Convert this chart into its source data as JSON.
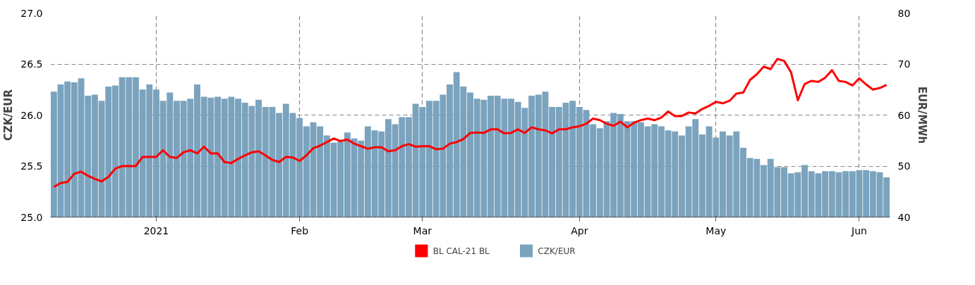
{
  "chart_data": {
    "type": "bar",
    "categories": [
      null,
      null,
      null,
      null,
      null,
      null,
      null,
      null,
      null,
      null,
      null,
      null,
      null,
      null,
      null,
      "2021",
      null,
      null,
      null,
      null,
      null,
      null,
      null,
      null,
      null,
      null,
      null,
      null,
      null,
      null,
      null,
      null,
      null,
      null,
      null,
      null,
      "Feb",
      null,
      null,
      null,
      null,
      null,
      null,
      null,
      null,
      null,
      null,
      null,
      null,
      null,
      null,
      null,
      null,
      null,
      "Mar",
      null,
      null,
      null,
      null,
      null,
      null,
      null,
      null,
      null,
      null,
      null,
      null,
      null,
      null,
      null,
      null,
      null,
      null,
      null,
      null,
      null,
      null,
      "Apr",
      null,
      null,
      null,
      null,
      null,
      null,
      null,
      null,
      null,
      null,
      null,
      null,
      null,
      null,
      null,
      null,
      null,
      null,
      null,
      "May",
      null,
      null,
      null,
      null,
      null,
      null,
      null,
      null,
      null,
      null,
      null,
      null,
      null,
      null,
      null,
      null,
      null,
      null,
      null,
      null,
      "Jun",
      null,
      null,
      null,
      null
    ],
    "series": [
      {
        "name": "BL CAL-21 BL",
        "type": "line",
        "axis": "y2",
        "color": "#ff0000",
        "values": [
          45.9,
          46.7,
          46.9,
          48.5,
          48.9,
          48.1,
          47.5,
          47.0,
          47.9,
          49.5,
          50.0,
          50.0,
          50.0,
          51.8,
          51.8,
          51.8,
          53.1,
          51.8,
          51.6,
          52.7,
          53.1,
          52.5,
          53.8,
          52.5,
          52.5,
          50.8,
          50.6,
          51.4,
          52.1,
          52.7,
          52.9,
          52.1,
          51.2,
          50.8,
          51.8,
          51.7,
          51.0,
          52.1,
          53.5,
          54.0,
          54.7,
          55.4,
          54.9,
          55.2,
          54.4,
          53.9,
          53.4,
          53.7,
          53.7,
          52.9,
          53.1,
          53.9,
          54.3,
          53.8,
          53.9,
          53.9,
          53.3,
          53.4,
          54.4,
          54.7,
          55.3,
          56.5,
          56.6,
          56.5,
          57.2,
          57.2,
          56.4,
          56.5,
          57.2,
          56.5,
          57.6,
          57.2,
          57.0,
          56.4,
          57.2,
          57.2,
          57.6,
          57.8,
          58.3,
          59.3,
          59.0,
          58.3,
          57.9,
          58.7,
          57.6,
          58.5,
          59.0,
          59.3,
          59.0,
          59.5,
          60.7,
          59.8,
          59.8,
          60.5,
          60.3,
          61.2,
          61.8,
          62.6,
          62.3,
          62.8,
          64.2,
          64.4,
          66.9,
          68.0,
          69.5,
          69.0,
          71.0,
          70.6,
          68.4,
          62.9,
          66.1,
          66.7,
          66.5,
          67.3,
          68.8,
          66.7,
          66.5,
          65.8,
          67.2,
          66.0,
          65.0,
          65.3,
          65.9
        ]
      },
      {
        "name": "CZK/EUR",
        "color": "#7ba3be",
        "values": [
          26.23,
          26.3,
          26.33,
          26.32,
          26.36,
          26.19,
          26.2,
          26.14,
          26.28,
          26.29,
          26.37,
          26.37,
          26.37,
          26.25,
          26.3,
          26.25,
          26.14,
          26.22,
          26.14,
          26.14,
          26.16,
          26.3,
          26.18,
          26.17,
          26.18,
          26.16,
          26.18,
          26.16,
          26.12,
          26.09,
          26.15,
          26.08,
          26.08,
          26.02,
          26.11,
          26.02,
          25.97,
          25.89,
          25.93,
          25.89,
          25.8,
          25.73,
          25.74,
          25.83,
          25.77,
          25.75,
          25.89,
          25.85,
          25.84,
          25.96,
          25.91,
          25.98,
          25.98,
          26.11,
          26.08,
          26.14,
          26.14,
          26.2,
          26.3,
          26.42,
          26.28,
          26.22,
          26.16,
          26.15,
          26.19,
          26.19,
          26.16,
          26.16,
          26.13,
          26.07,
          26.19,
          26.2,
          26.23,
          26.08,
          26.08,
          26.12,
          26.14,
          26.08,
          26.05,
          25.91,
          25.87,
          25.94,
          26.02,
          26.01,
          25.94,
          25.94,
          25.93,
          25.89,
          25.91,
          25.89,
          25.85,
          25.84,
          25.8,
          25.89,
          25.96,
          25.81,
          25.89,
          25.78,
          25.84,
          25.8,
          25.84,
          25.68,
          25.58,
          25.57,
          25.51,
          25.57,
          25.49,
          25.49,
          25.43,
          25.44,
          25.51,
          25.45,
          25.43,
          25.45,
          25.45,
          25.44,
          25.45,
          25.45,
          25.46,
          25.46,
          25.45,
          25.44,
          25.39
        ]
      }
    ],
    "ylabel": "CZK/EUR",
    "y2label": "EUR/MWh",
    "ylim": [
      25.0,
      27.0
    ],
    "yticks": [
      {
        "value": 25.0,
        "label": "25.0"
      },
      {
        "value": 25.5,
        "label": "25.5"
      },
      {
        "value": 26.0,
        "label": "26.0"
      },
      {
        "value": 26.5,
        "label": "26.5"
      },
      {
        "value": 27.0,
        "label": "27.0"
      }
    ],
    "y2lim": [
      40,
      80
    ],
    "y2ticks": [
      40,
      50,
      60,
      70,
      80
    ],
    "grid": true,
    "legend": "bottom"
  }
}
